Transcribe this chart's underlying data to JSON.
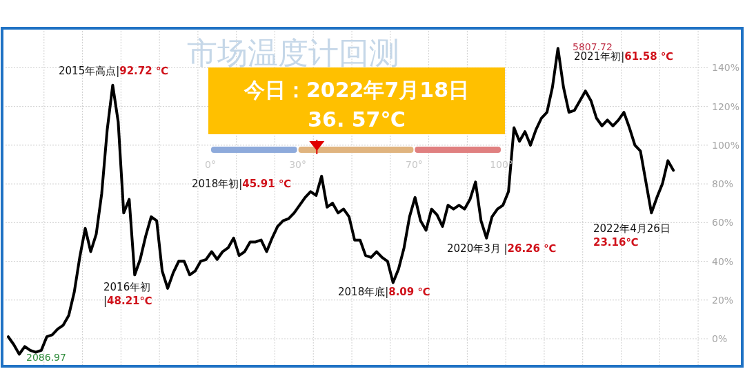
{
  "chart_data": [
    {
      "type": "line",
      "title": "市场温度计回测",
      "categories": [
        null,
        null,
        null,
        null,
        null,
        null,
        null,
        null,
        null,
        null,
        null,
        null,
        null,
        null,
        null,
        null,
        null,
        null,
        null,
        null,
        null,
        null,
        null,
        null,
        null,
        null,
        null,
        null,
        null,
        null,
        null,
        null,
        null,
        null,
        null,
        null,
        null,
        null,
        null,
        null,
        null,
        null,
        null,
        null,
        null,
        null,
        null,
        null,
        null,
        null,
        null,
        null,
        null,
        null,
        null,
        null,
        null,
        null,
        null,
        null,
        null,
        null,
        null,
        null,
        null,
        null,
        null,
        null,
        null,
        null,
        null,
        null,
        null,
        null,
        null,
        null,
        null,
        null,
        null,
        null,
        null,
        null,
        null,
        null,
        null,
        null,
        null,
        null,
        null,
        null,
        null,
        null,
        null,
        null,
        null,
        null,
        null,
        null,
        null,
        null,
        null,
        null,
        null,
        null,
        null,
        null,
        null,
        null,
        null,
        null,
        null,
        null,
        null,
        null,
        null,
        null,
        null,
        null,
        null,
        null,
        null,
        null,
        null,
        null,
        null,
        null,
        null,
        null
      ],
      "series": [
        {
          "color": "#000000",
          "values": [
            1,
            -3,
            -8,
            -4,
            -6,
            -7,
            -6,
            1,
            2,
            5,
            7,
            12,
            24,
            42,
            57,
            45,
            54,
            75,
            108,
            131,
            112,
            65,
            72,
            33,
            41,
            53,
            63,
            61,
            35,
            26,
            34,
            40,
            40,
            33,
            35,
            40,
            41,
            45,
            41,
            45,
            47,
            52,
            43,
            45,
            50,
            50,
            51,
            45,
            52,
            58,
            61,
            62,
            65,
            69,
            73,
            76,
            74,
            84,
            68,
            70,
            65,
            67,
            63,
            51,
            51,
            43,
            42,
            45,
            42,
            40,
            29,
            36,
            47,
            63,
            73,
            61,
            56,
            67,
            64,
            58,
            69,
            67,
            69,
            67,
            72,
            81,
            61,
            52,
            63,
            67,
            69,
            76,
            109,
            102,
            107,
            100,
            108,
            114,
            117,
            130,
            150,
            130,
            117,
            118,
            123,
            128,
            123,
            114,
            110,
            113,
            110,
            113,
            117,
            109,
            100,
            97,
            81,
            65,
            73,
            80,
            92,
            87,
            null,
            null,
            null,
            null,
            null,
            null
          ]
        }
      ],
      "ylim": [
        -13.5,
        159
      ],
      "yticks": [
        {
          "value": 0,
          "label": "0%"
        },
        {
          "value": 20,
          "label": "20%"
        },
        {
          "value": 40,
          "label": "40%"
        },
        {
          "value": 60,
          "label": "60%"
        },
        {
          "value": 80,
          "label": "80%"
        },
        {
          "value": 100,
          "label": "100%"
        },
        {
          "value": 120,
          "label": "120%"
        },
        {
          "value": 140,
          "label": "140%"
        }
      ],
      "tick_labels": "y",
      "grid": true,
      "marker": "none",
      "line_style": "solid",
      "annotations": [
        "2015年高点|92.72 ℃",
        "2016年初\n|48.21℃",
        "2018年初|45.91 ℃",
        "2018年底|8.09 ℃",
        "2020年3月 |26.26 ℃",
        "2021年初|61.58 ℃",
        "2022年4月26日\n23.16℃",
        "5807.72",
        "2086.97"
      ]
    },
    {
      "type": "bar",
      "orientation": "horizontal",
      "stacked": true,
      "title": "今日：2022年7月18日",
      "subtitle": "36. 57℃",
      "categories": [
        null
      ],
      "series": [
        {
          "color": "#8eaadb",
          "values": [
            30
          ]
        },
        {
          "color": "#e0b47f",
          "values": [
            40
          ]
        },
        {
          "color": "#e08080",
          "values": [
            30
          ]
        }
      ],
      "xlim": [
        0,
        100
      ],
      "xticks": [
        {
          "value": 0,
          "label": "0°"
        },
        {
          "value": 30,
          "label": "30°"
        },
        {
          "value": 70,
          "label": "70°"
        },
        {
          "value": 100,
          "label": "100°"
        }
      ],
      "tick_labels": "x",
      "ref_lines": [
        {
          "axis": "x",
          "value": 36.57,
          "color": "#e00000"
        }
      ]
    }
  ]
}
